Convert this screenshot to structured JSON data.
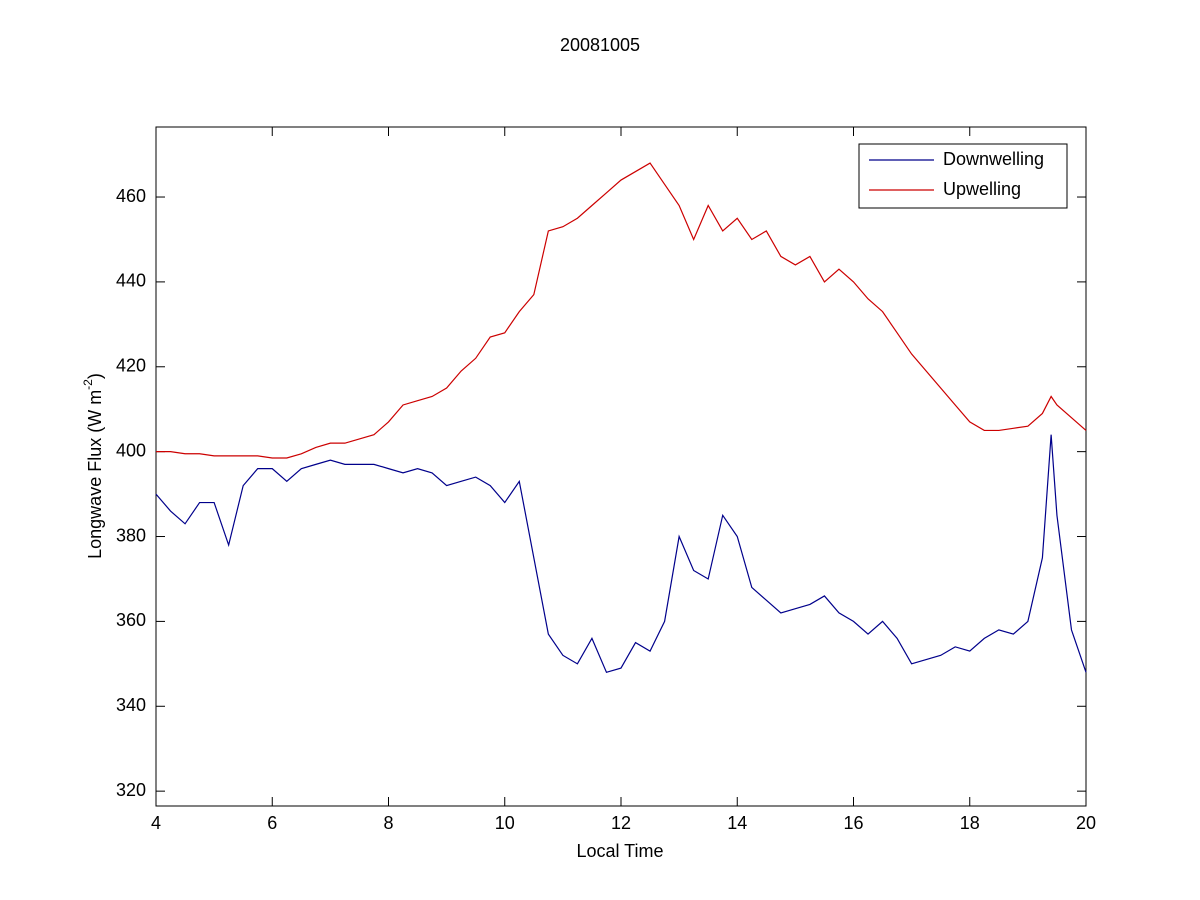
{
  "chart_data": {
    "type": "line",
    "title": "20081005",
    "xlabel": "Local Time",
    "ylabel": "Longwave Flux (W m",
    "ylabel_sup": "-2",
    "ylabel_end": ")",
    "x": [
      4,
      4.25,
      4.5,
      4.75,
      5,
      5.25,
      5.5,
      5.75,
      6,
      6.25,
      6.5,
      6.75,
      7,
      7.25,
      7.5,
      7.75,
      8,
      8.25,
      8.5,
      8.75,
      9,
      9.25,
      9.5,
      9.75,
      10,
      10.25,
      10.5,
      10.75,
      11,
      11.25,
      11.5,
      11.75,
      12,
      12.25,
      12.5,
      12.75,
      13,
      13.25,
      13.5,
      13.75,
      14,
      14.25,
      14.5,
      14.75,
      15,
      15.25,
      15.5,
      15.75,
      16,
      16.25,
      16.5,
      16.75,
      17,
      17.25,
      17.5,
      17.75,
      18,
      18.25,
      18.5,
      18.75,
      19,
      19.25,
      19.4,
      19.5,
      19.75,
      20
    ],
    "series": [
      {
        "name": "Downwelling",
        "color": "#00008b",
        "values": [
          390,
          386,
          383,
          388,
          388,
          378,
          392,
          396,
          396,
          393,
          396,
          397,
          398,
          397,
          397,
          397,
          396,
          395,
          396,
          395,
          392,
          393,
          394,
          392,
          388,
          393,
          375,
          357,
          352,
          350,
          356,
          348,
          349,
          355,
          353,
          360,
          380,
          372,
          370,
          385,
          380,
          368,
          365,
          362,
          363,
          364,
          366,
          362,
          360,
          357,
          360,
          356,
          350,
          351,
          352,
          354,
          353,
          356,
          358,
          357,
          360,
          375,
          404,
          385,
          358,
          348
        ]
      },
      {
        "name": "Upwelling",
        "color": "#cc0000",
        "values": [
          400,
          400,
          399.5,
          399.5,
          399,
          399,
          399,
          399,
          398.5,
          398.5,
          399.5,
          401,
          402,
          402,
          403,
          404,
          407,
          411,
          412,
          413,
          415,
          419,
          422,
          427,
          428,
          433,
          437,
          452,
          453,
          455,
          458,
          461,
          464,
          466,
          468,
          463,
          458,
          450,
          458,
          452,
          455,
          450,
          452,
          446,
          444,
          446,
          440,
          443,
          440,
          436,
          433,
          428,
          423,
          419,
          415,
          411,
          407,
          405,
          405,
          405.5,
          406,
          409,
          413,
          411,
          408,
          405
        ]
      }
    ],
    "xlim": [
      4,
      20
    ],
    "xticks": [
      4,
      6,
      8,
      10,
      12,
      14,
      16,
      18,
      20
    ],
    "ylim": [
      316.5,
      476.5
    ],
    "yticks": [
      320,
      340,
      360,
      380,
      400,
      420,
      440,
      460
    ],
    "legend": "northeast",
    "grid": false
  }
}
